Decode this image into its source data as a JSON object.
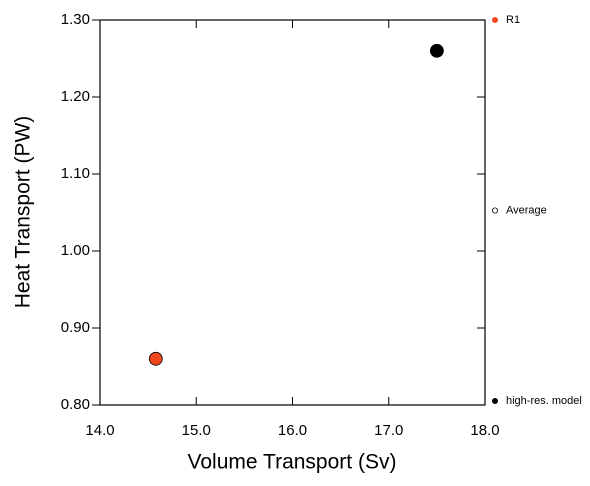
{
  "chart_data": {
    "type": "scatter",
    "xlabel": "Volume Transport (Sv)",
    "ylabel": "Heat Transport (PW)",
    "xlim": [
      14,
      18
    ],
    "ylim": [
      0.8,
      1.3
    ],
    "xticks": [
      {
        "value": 14,
        "label": "14.0"
      },
      {
        "value": 15,
        "label": "15.0"
      },
      {
        "value": 16,
        "label": "16.0"
      },
      {
        "value": 17,
        "label": "17.0"
      },
      {
        "value": 18,
        "label": "18.0"
      }
    ],
    "yticks": [
      {
        "value": 0.8,
        "label": "0.80"
      },
      {
        "value": 0.9,
        "label": "0.90"
      },
      {
        "value": 1.0,
        "label": "1.00"
      },
      {
        "value": 1.1,
        "label": "1.10"
      },
      {
        "value": 1.2,
        "label": "1.20"
      },
      {
        "value": 1.3,
        "label": "1.30"
      }
    ],
    "series": [
      {
        "name": "R1",
        "color": "#f0461e",
        "fill": "#f0461e",
        "x": [
          14.58
        ],
        "y": [
          0.86
        ]
      },
      {
        "name": "Average",
        "color": "#000000",
        "fill": "none",
        "x": [],
        "y": []
      },
      {
        "name": "high-res. model",
        "color": "#000000",
        "fill": "#000000",
        "x": [
          17.5
        ],
        "y": [
          1.26
        ]
      }
    ]
  }
}
